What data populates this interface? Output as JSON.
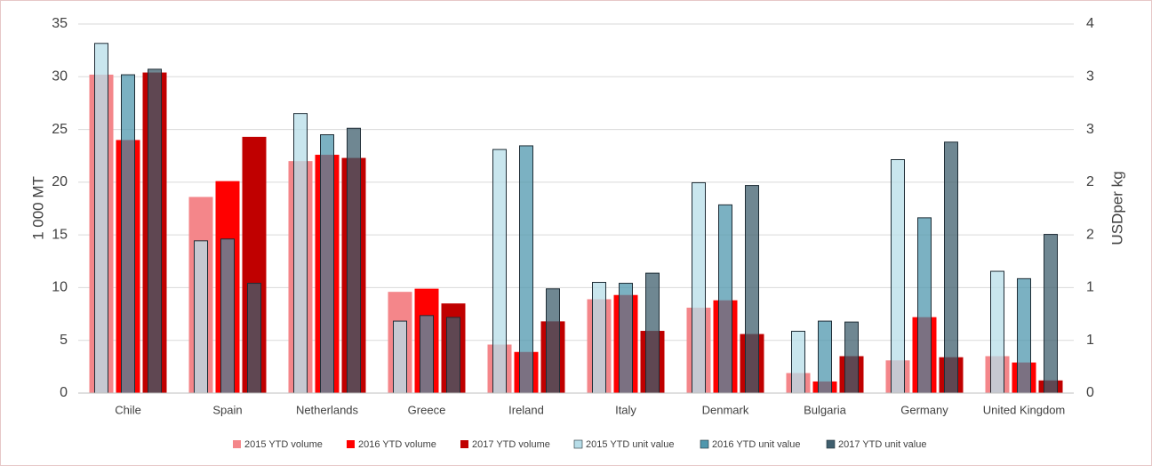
{
  "chart_data": {
    "type": "bar",
    "categories": [
      "Chile",
      "Spain",
      "Netherlands",
      "Greece",
      "Ireland",
      "Italy",
      "Denmark",
      "Bulgaria",
      "Germany",
      "United Kingdom"
    ],
    "series": [
      {
        "name": "2015 YTD volume",
        "color": "#f4868a",
        "values": [
          30.2,
          18.6,
          22.0,
          9.6,
          4.6,
          8.9,
          8.1,
          1.9,
          3.1,
          3.5
        ]
      },
      {
        "name": "2016 YTD volume",
        "color": "#ff0000",
        "values": [
          24.0,
          20.1,
          22.6,
          9.9,
          3.9,
          9.3,
          8.8,
          1.1,
          7.2,
          2.9
        ]
      },
      {
        "name": "2017 YTD volume",
        "color": "#c00000",
        "values": [
          30.4,
          24.3,
          22.3,
          8.5,
          6.8,
          5.9,
          5.6,
          3.5,
          3.4,
          1.2
        ]
      },
      {
        "name": "2015 YTD unit value",
        "color": "#b7dde8",
        "axis": "y2",
        "values": [
          3.79,
          1.65,
          3.03,
          0.78,
          2.64,
          1.2,
          2.28,
          0.67,
          2.53,
          1.32
        ]
      },
      {
        "name": "2016 YTD unit value",
        "color": "#4f97ad",
        "axis": "y2",
        "values": [
          3.45,
          1.67,
          2.8,
          0.84,
          2.68,
          1.19,
          2.04,
          0.78,
          1.9,
          1.24
        ]
      },
      {
        "name": "2017 YTD unit value",
        "color": "#3f5f6e",
        "axis": "y2",
        "values": [
          3.51,
          1.19,
          2.87,
          0.82,
          1.13,
          1.3,
          2.25,
          0.77,
          2.72,
          1.72
        ]
      }
    ],
    "ylabel": "1 000 MT",
    "y2label": "USDper kg",
    "ylim": [
      0,
      35
    ],
    "yticks": [
      0,
      5,
      10,
      15,
      20,
      25,
      30,
      35
    ],
    "y2lim": [
      0,
      4
    ],
    "y2ticks": [
      {
        "value": 0,
        "label": "0"
      },
      {
        "value": 0.571,
        "label": "1"
      },
      {
        "value": 1.143,
        "label": "1"
      },
      {
        "value": 1.714,
        "label": "2"
      },
      {
        "value": 2.286,
        "label": "2"
      },
      {
        "value": 2.857,
        "label": "3"
      },
      {
        "value": 3.429,
        "label": "3"
      },
      {
        "value": 4,
        "label": "4"
      }
    ],
    "grid": true,
    "legend": "bottom"
  }
}
